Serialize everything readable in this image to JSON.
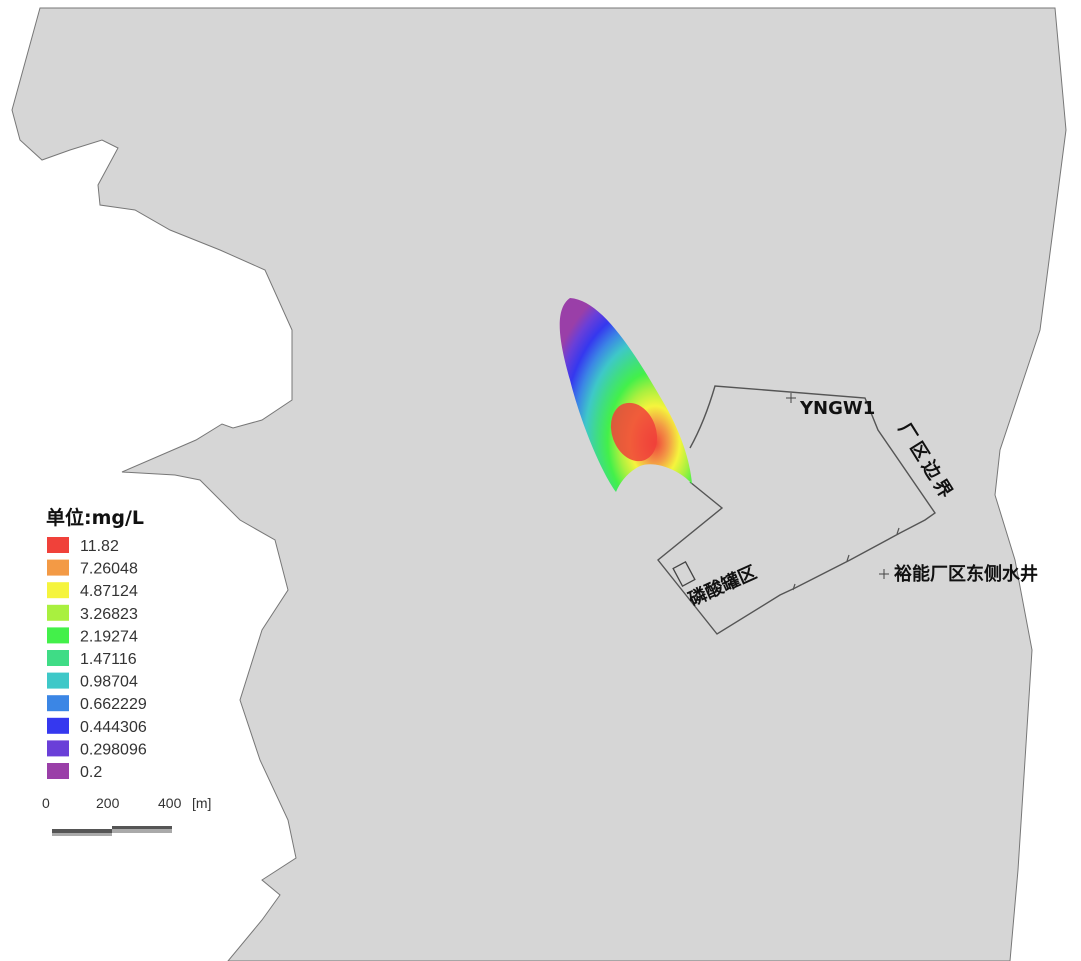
{
  "legend": {
    "title": "单位:mg/L",
    "items": [
      {
        "label": "11.82",
        "color": "#f0413a"
      },
      {
        "label": "7.26048",
        "color": "#f39a45"
      },
      {
        "label": "4.87124",
        "color": "#f5f43d"
      },
      {
        "label": "3.26823",
        "color": "#a9f03f"
      },
      {
        "label": "2.19274",
        "color": "#43f04a"
      },
      {
        "label": "1.47116",
        "color": "#3fdc86"
      },
      {
        "label": "0.98704",
        "color": "#3ec8c8"
      },
      {
        "label": "0.662229",
        "color": "#3b86e5"
      },
      {
        "label": "0.444306",
        "color": "#3538ef"
      },
      {
        "label": "0.298096",
        "color": "#6a3fd8"
      },
      {
        "label": "0.2",
        "color": "#9a3fa8"
      }
    ]
  },
  "scale_bar": {
    "ticks": [
      "0",
      "200",
      "400"
    ],
    "unit": "[m]"
  },
  "labels": {
    "well_yngw1": "YNGW1",
    "plant_boundary": [
      "厂",
      "区",
      "边",
      "界"
    ],
    "tank_area": "磷酸罐区",
    "east_well": "裕能厂区东侧水井"
  },
  "colors": {
    "land": "#d6d6d6",
    "outline": "#555555"
  }
}
